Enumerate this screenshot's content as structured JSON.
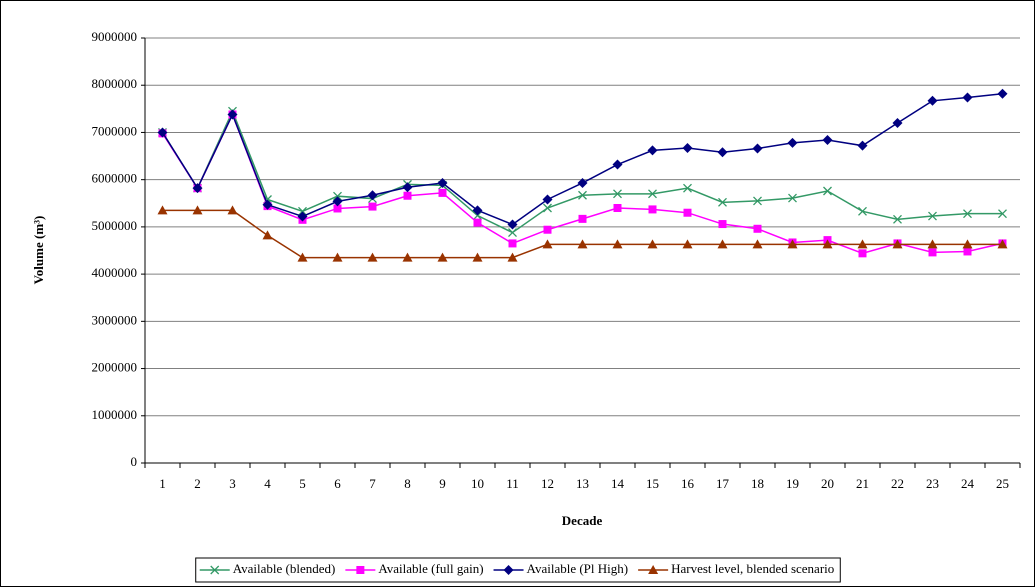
{
  "chart_data": {
    "type": "line",
    "xlabel": "Decade",
    "ylabel": "Volume (m³)",
    "categories": [
      "1",
      "2",
      "3",
      "4",
      "5",
      "6",
      "7",
      "8",
      "9",
      "10",
      "11",
      "12",
      "13",
      "14",
      "15",
      "16",
      "17",
      "18",
      "19",
      "20",
      "21",
      "22",
      "23",
      "24",
      "25"
    ],
    "series": [
      {
        "name": "Available (blended)",
        "color": "#339966",
        "marker": "x",
        "values": [
          7000000,
          5820000,
          7450000,
          5580000,
          5330000,
          5650000,
          5600000,
          5900000,
          5880000,
          5240000,
          4880000,
          5400000,
          5670000,
          5700000,
          5700000,
          5820000,
          5520000,
          5550000,
          5610000,
          5760000,
          5330000,
          5160000,
          5230000,
          5280000,
          5280000
        ]
      },
      {
        "name": "Available (full gain)",
        "color": "#ff00ff",
        "marker": "square",
        "values": [
          6980000,
          5820000,
          7380000,
          5440000,
          5150000,
          5390000,
          5430000,
          5660000,
          5720000,
          5090000,
          4650000,
          4940000,
          5170000,
          5400000,
          5370000,
          5300000,
          5060000,
          4960000,
          4670000,
          4720000,
          4440000,
          4650000,
          4460000,
          4480000,
          4650000
        ]
      },
      {
        "name": "Available (Pl High)",
        "color": "#000080",
        "marker": "diamond",
        "values": [
          7000000,
          5820000,
          7380000,
          5470000,
          5220000,
          5540000,
          5670000,
          5840000,
          5930000,
          5350000,
          5050000,
          5580000,
          5930000,
          6320000,
          6620000,
          6670000,
          6580000,
          6660000,
          6780000,
          6840000,
          6720000,
          7200000,
          7670000,
          7740000,
          7820000
        ]
      },
      {
        "name": "Harvest level, blended scenario",
        "color": "#993300",
        "marker": "triangle",
        "values": [
          5350000,
          5350000,
          5350000,
          4820000,
          4350000,
          4350000,
          4350000,
          4350000,
          4350000,
          4350000,
          4350000,
          4630000,
          4630000,
          4630000,
          4630000,
          4630000,
          4630000,
          4630000,
          4630000,
          4630000,
          4630000,
          4630000,
          4630000,
          4630000,
          4630000
        ]
      }
    ],
    "ylim": [
      0,
      9000000
    ],
    "yticks": [
      0,
      1000000,
      2000000,
      3000000,
      4000000,
      5000000,
      6000000,
      7000000,
      8000000,
      9000000
    ],
    "grid": true,
    "legend": "bottom"
  }
}
